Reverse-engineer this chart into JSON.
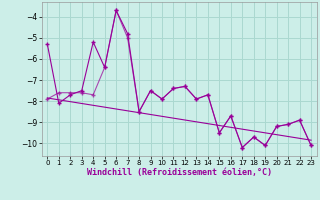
{
  "xlabel": "Windchill (Refroidissement éolien,°C)",
  "bg_color": "#cceee8",
  "grid_color": "#aad8d0",
  "line_color": "#990099",
  "xlim": [
    -0.5,
    23.5
  ],
  "ylim": [
    -10.6,
    -3.3
  ],
  "yticks": [
    -10,
    -9,
    -8,
    -7,
    -6,
    -5,
    -4
  ],
  "xticks": [
    0,
    1,
    2,
    3,
    4,
    5,
    6,
    7,
    8,
    9,
    10,
    11,
    12,
    13,
    14,
    15,
    16,
    17,
    18,
    19,
    20,
    21,
    22,
    23
  ],
  "series1": [
    [
      0,
      -5.3
    ],
    [
      1,
      -8.1
    ],
    [
      2,
      -7.7
    ],
    [
      3,
      -7.5
    ],
    [
      4,
      -5.2
    ],
    [
      5,
      -6.4
    ],
    [
      6,
      -3.7
    ],
    [
      7,
      -4.8
    ],
    [
      8,
      -8.5
    ],
    [
      9,
      -7.5
    ],
    [
      10,
      -7.9
    ],
    [
      11,
      -7.4
    ],
    [
      12,
      -7.3
    ],
    [
      13,
      -7.9
    ],
    [
      14,
      -7.7
    ],
    [
      15,
      -9.5
    ],
    [
      16,
      -8.7
    ],
    [
      17,
      -10.2
    ],
    [
      18,
      -9.7
    ],
    [
      19,
      -10.1
    ],
    [
      20,
      -9.2
    ],
    [
      21,
      -9.1
    ],
    [
      22,
      -8.9
    ],
    [
      23,
      -10.1
    ]
  ],
  "series2": [
    [
      0,
      -7.9
    ],
    [
      1,
      -7.6
    ],
    [
      2,
      -7.6
    ],
    [
      3,
      -7.6
    ],
    [
      4,
      -7.7
    ],
    [
      5,
      -6.4
    ],
    [
      6,
      -3.7
    ],
    [
      7,
      -5.0
    ],
    [
      8,
      -8.5
    ],
    [
      9,
      -7.5
    ],
    [
      10,
      -7.9
    ],
    [
      11,
      -7.4
    ],
    [
      12,
      -7.3
    ],
    [
      13,
      -7.9
    ],
    [
      14,
      -7.7
    ],
    [
      15,
      -9.5
    ],
    [
      16,
      -8.7
    ],
    [
      17,
      -10.2
    ],
    [
      18,
      -9.7
    ],
    [
      19,
      -10.1
    ],
    [
      20,
      -9.2
    ],
    [
      21,
      -9.1
    ],
    [
      22,
      -8.9
    ],
    [
      23,
      -10.1
    ]
  ],
  "trend_x": [
    0,
    23
  ],
  "trend_y": [
    -7.85,
    -9.85
  ]
}
